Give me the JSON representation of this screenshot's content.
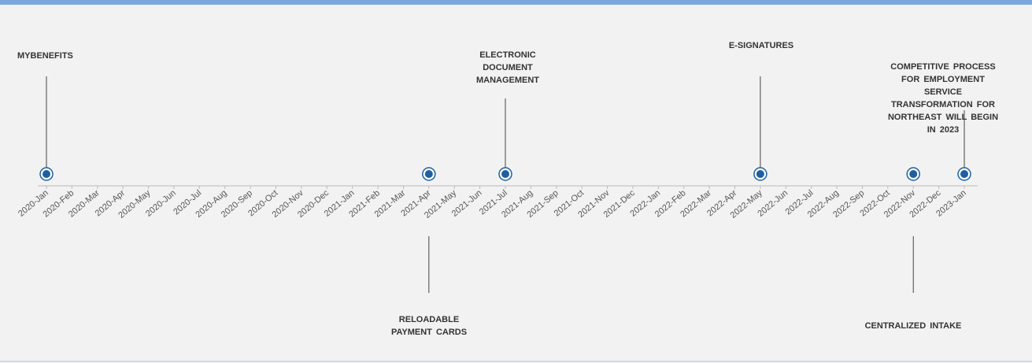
{
  "chart_data": {
    "type": "timeline",
    "categories": [
      "2020-Jan",
      "2020-Feb",
      "2020-Mar",
      "2020-Apr",
      "2020-May",
      "2020-Jun",
      "2020-Jul",
      "2020-Aug",
      "2020-Sep",
      "2020-Oct",
      "2020-Nov",
      "2020-Dec",
      "2021-Jan",
      "2021-Feb",
      "2021-Mar",
      "2021-Apr",
      "2021-May",
      "2021-Jun",
      "2021-Jul",
      "2021-Aug",
      "2021-Sep",
      "2021-Oct",
      "2021-Nov",
      "2021-Dec",
      "2022-Jan",
      "2022-Feb",
      "2022-Mar",
      "2022-Apr",
      "2022-May",
      "2022-Jun",
      "2022-Jul",
      "2022-Aug",
      "2022-Sep",
      "2022-Oct",
      "2022-Nov",
      "2022-Dec",
      "2023-Jan"
    ],
    "events": [
      {
        "label": "MYBENEFITS",
        "date": "2020-Jan"
      },
      {
        "label": "RELOADABLE PAYMENT CARDS",
        "date": "2021-Apr"
      },
      {
        "label": "ELECTRONIC DOCUMENT MANAGEMENT",
        "date": "2021-Jul"
      },
      {
        "label": "E-SIGNATURES",
        "date": "2022-May"
      },
      {
        "label": "CENTRALIZED INTAKE",
        "date": "2022-Nov"
      },
      {
        "label": "COMPETITIVE PROCESS FOR EMPLOYMENT SERVICE TRANSFORMATION FOR NORTHEAST WILL BEGIN IN 2023",
        "date": "2023-Jan"
      }
    ],
    "color": "#1f5fa0"
  }
}
